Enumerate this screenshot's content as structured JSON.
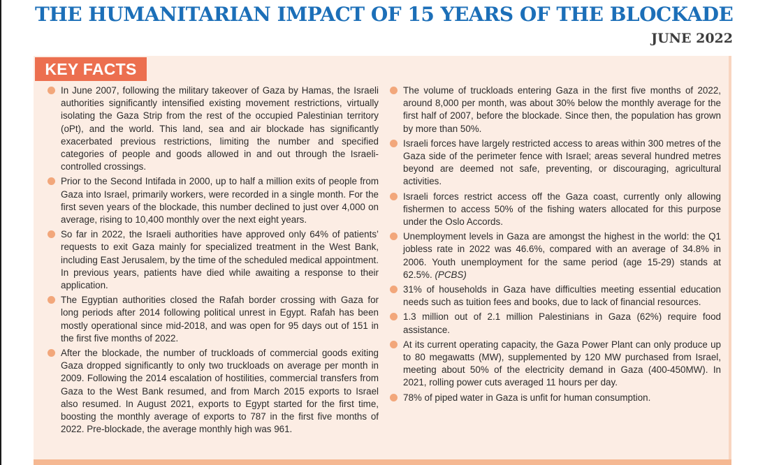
{
  "header": {
    "title": "THE HUMANITARIAN IMPACT OF 15 YEARS OF THE BLOCKADE",
    "date": "JUNE 2022"
  },
  "key_facts": {
    "heading": "KEY FACTS",
    "bullet_icon": "circle-bullet",
    "colors": {
      "title": "#1c6fb8",
      "tab": "#ec6f4f",
      "panel": "#fcede4",
      "bullet": "#f2a77b"
    },
    "left_column": [
      {
        "text": "In June 2007, following the military takeover of Gaza by Hamas, the Israeli authorities significantly intensified existing movement restrictions, virtually isolating the Gaza Strip from the rest of the occupied Palestinian territory (oPt), and the world. This land, sea and air blockade has significantly exacerbated previous restrictions, limiting the number and specified categories of people and goods allowed in and out through the Israeli-controlled crossings."
      },
      {
        "text": "Prior to the Second Intifada in 2000, up to half a million exits of people from Gaza into Israel, primarily workers, were recorded in a single month. For the first seven years of the blockade, this number declined to just over 4,000 on average, rising to 10,400 monthly over the next eight years."
      },
      {
        "text": "So far in 2022, the Israeli authorities have approved only 64% of patients’ requests to exit Gaza mainly for specialized treatment in the West Bank, including East Jerusalem, by the time of the scheduled medical appointment. In previous years, patients have died while awaiting a response to their application."
      },
      {
        "text": "The Egyptian authorities closed the Rafah border crossing with Gaza for long periods after 2014 following political unrest in Egypt. Rafah has been mostly operational since mid-2018, and was open for 95 days out of 151 in the first five months of 2022."
      },
      {
        "text": "After the blockade, the number of truckloads of commercial goods exiting Gaza dropped significantly to only two truckloads on average per month in 2009. Following the 2014 escalation of hostilities, commercial transfers from Gaza to the West Bank resumed, and from March 2015 exports to Israel also resumed. In August 2021, exports to Egypt started for the first time, boosting the monthly average of exports to 787 in the first five months of 2022. Pre-blockade, the average monthly high was 961."
      }
    ],
    "right_column": [
      {
        "text": "The volume of truckloads entering Gaza in the first five months of 2022, around 8,000 per month, was about 30% below the monthly average for the first half of 2007, before the blockade. Since then, the population has grown by more than 50%."
      },
      {
        "text": "Israeli forces have largely restricted access to areas within 300 metres of the Gaza side of the perimeter fence with Israel; areas several hundred metres beyond are deemed not safe, preventing, or discouraging, agricultural activities."
      },
      {
        "text": "Israeli forces restrict access off the Gaza coast, currently only allowing fishermen to access 50% of the fishing waters allocated for this purpose under the Oslo Accords."
      },
      {
        "text": "Unemployment levels in Gaza are amongst the highest in the world: the Q1 jobless rate in 2022 was 46.6%, compared with an average of 34.8% in 2006. Youth unemployment for the same period (age 15-29) stands at 62.5%.",
        "source": "(PCBS)"
      },
      {
        "text": "31% of households in Gaza have difficulties meeting essential education needs such as tuition fees and books, due to lack of financial resources."
      },
      {
        "text": "1.3 million out of 2.1 million Palestinians in Gaza (62%) require food assistance."
      },
      {
        "text": "At its current operating capacity, the Gaza Power Plant can only produce up to 80 megawatts (MW), supplemented by 120 MW purchased from Israel, meeting about 50% of the electricity demand in Gaza (400-450MW). In 2021, rolling power cuts averaged 11 hours per day."
      },
      {
        "text": "78% of piped water in Gaza is unfit for human consumption."
      }
    ]
  }
}
